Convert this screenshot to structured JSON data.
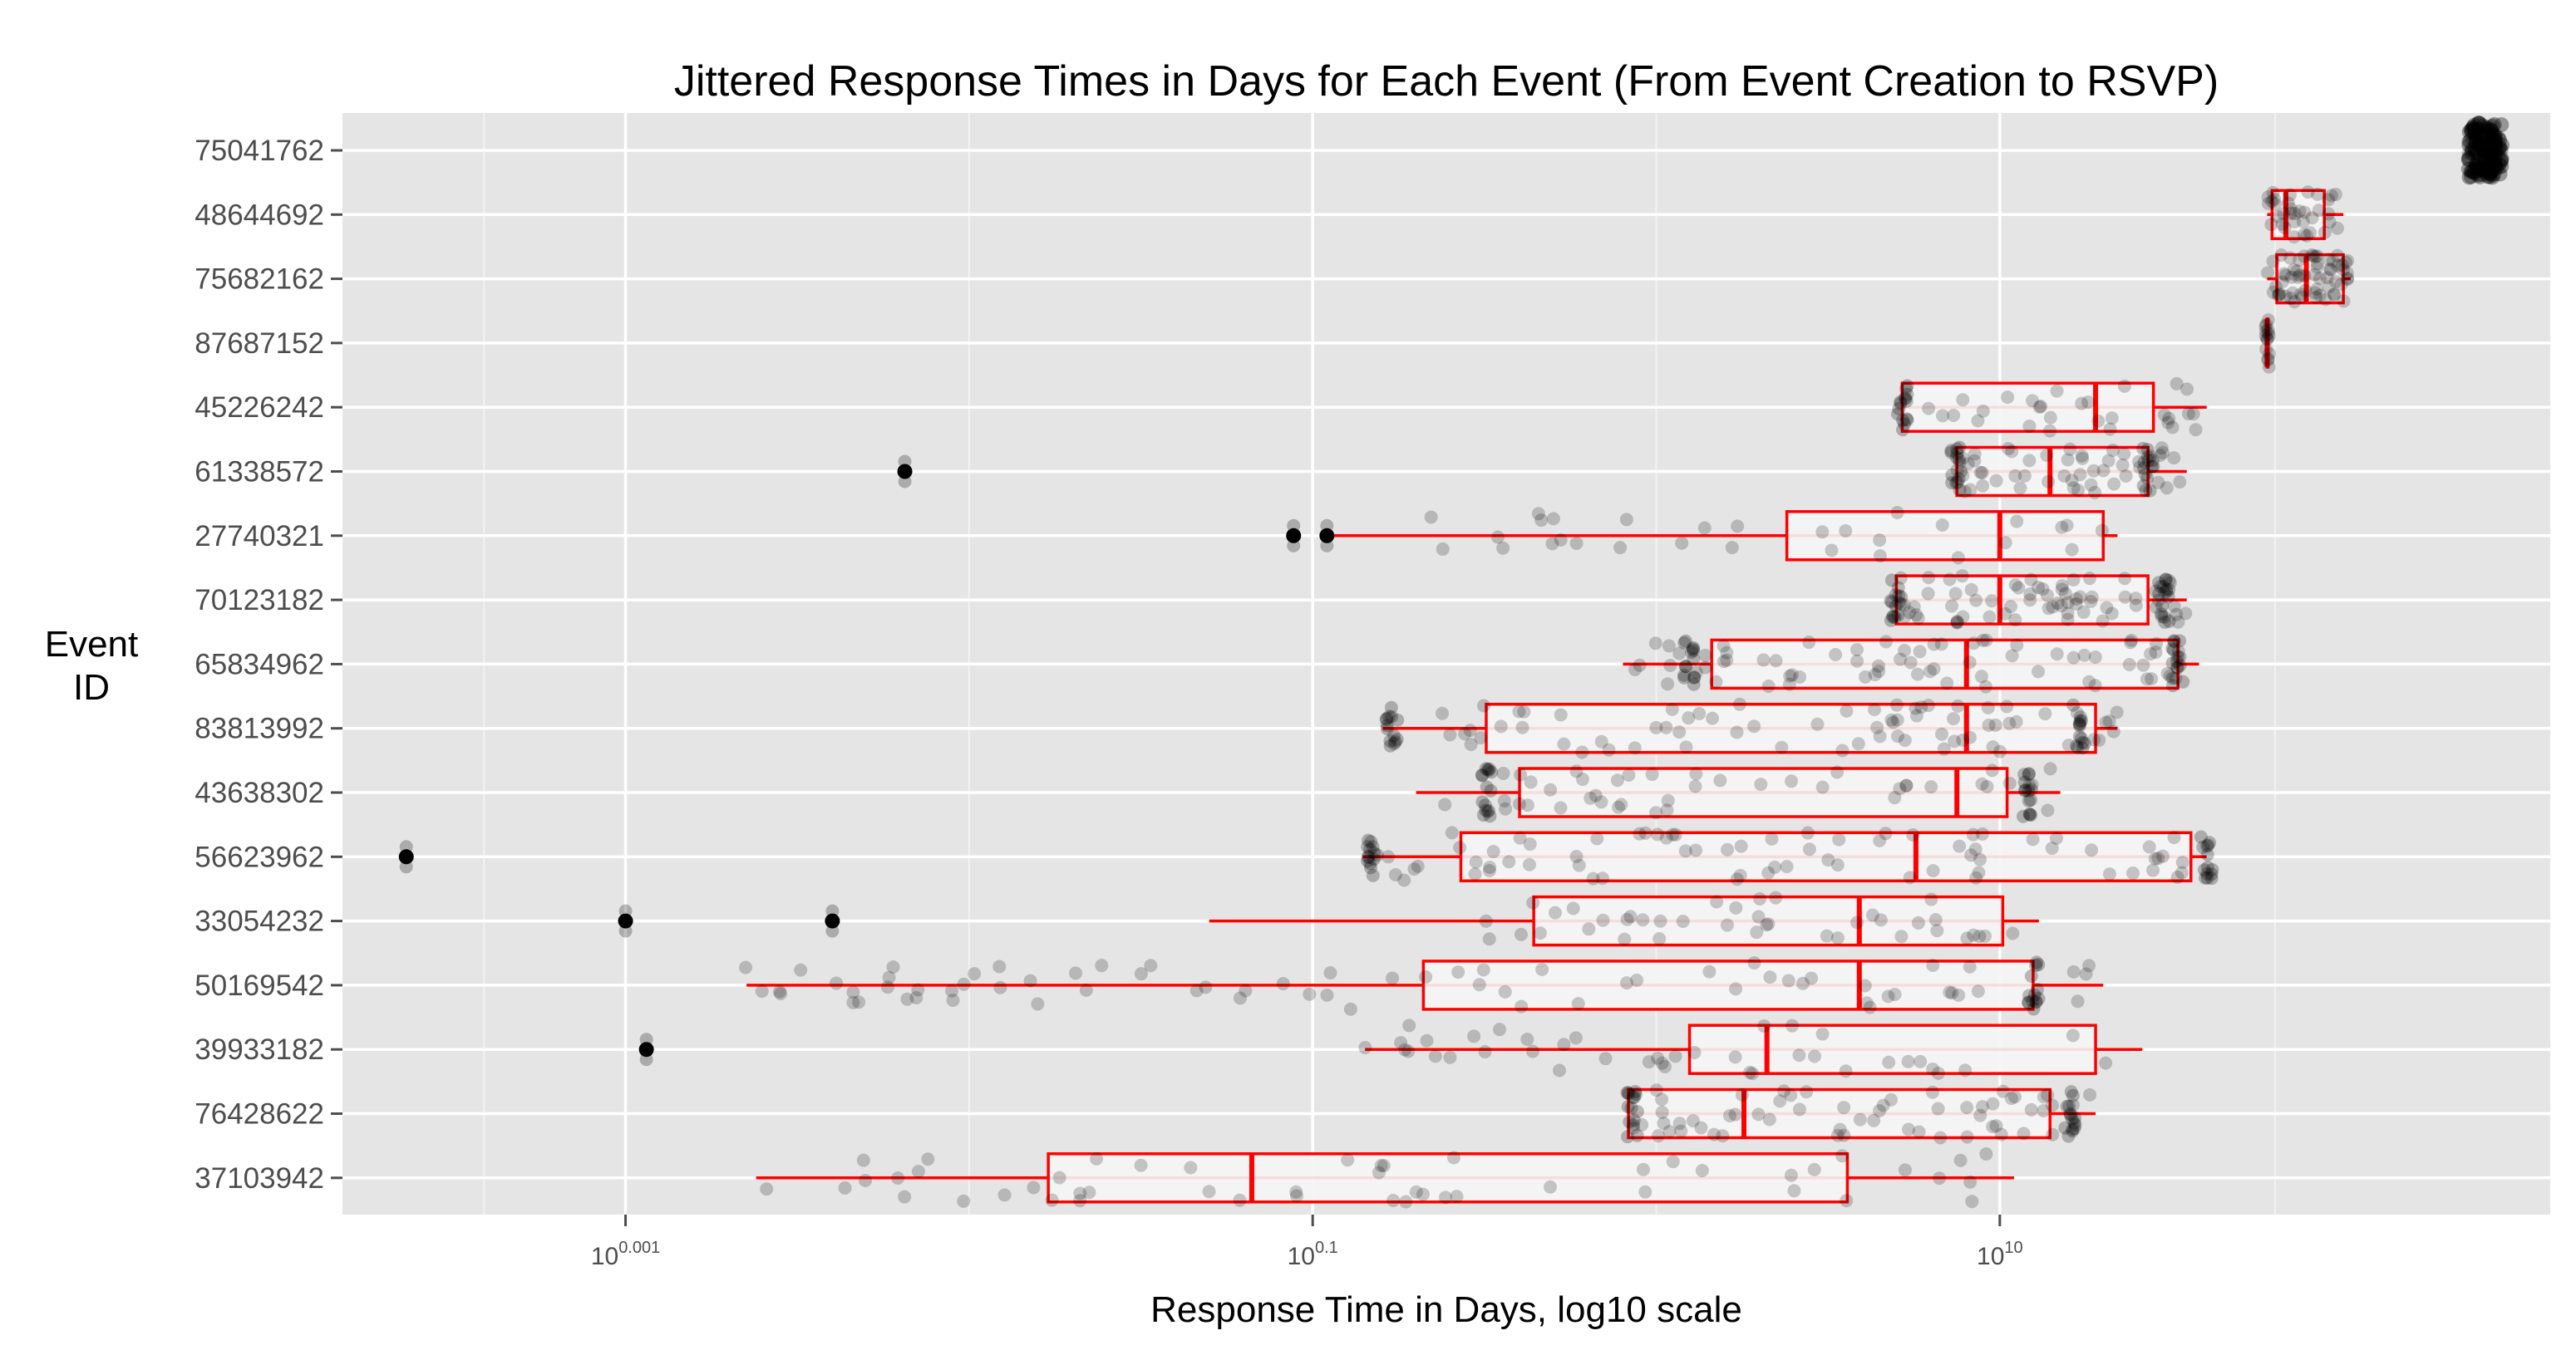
{
  "chart_data": {
    "type": "box",
    "title": "Jittered Response Times in Days for Each Event (From Event Creation to RSVP)",
    "xlabel": "Response Time in Days, log10 scale",
    "ylabel_lines": [
      "Event",
      "ID"
    ],
    "x_scale": "log10",
    "xlim": [
      0.00015,
      400
    ],
    "x_ticks": [
      {
        "value": 0.001,
        "base": "10",
        "exp": "0.001"
      },
      {
        "value": 0.1,
        "base": "10",
        "exp": "0.1"
      },
      {
        "value": 10,
        "base": "10",
        "exp": "10"
      }
    ],
    "grid": true,
    "colors": {
      "panel": "#e5e5e5",
      "grid_major": "#ffffff",
      "grid_minor": "#f2f2f2",
      "box": "#ff0000",
      "box_fill": "#f5f5f5",
      "points": "#000000"
    },
    "categories": [
      "75041762",
      "48644692",
      "75682162",
      "87687152",
      "45226242",
      "61338572",
      "27740321",
      "70123182",
      "65834962",
      "83813992",
      "43638302",
      "56623962",
      "33054232",
      "50169542",
      "39933182",
      "76428622",
      "37103942"
    ],
    "boxes": [
      {
        "id": "75041762",
        "wlo": 250,
        "q1": 250,
        "med": 250,
        "q3": 250,
        "whi": 250,
        "outliers": [],
        "points": {
          "lo": 230,
          "hi": 290,
          "n": 60,
          "clusters": []
        }
      },
      {
        "id": "48644692",
        "wlo": 60,
        "q1": 62,
        "med": 68,
        "q3": 88,
        "whi": 100,
        "outliers": [],
        "points": {
          "lo": 60,
          "hi": 100,
          "n": 35,
          "clusters": []
        }
      },
      {
        "id": "75682162",
        "wlo": 60,
        "q1": 64,
        "med": 78,
        "q3": 100,
        "whi": 105,
        "outliers": [],
        "points": {
          "lo": 60,
          "hi": 105,
          "n": 60,
          "clusters": []
        }
      },
      {
        "id": "87687152",
        "wlo": 60,
        "q1": 60,
        "med": 60,
        "q3": 60,
        "whi": 60,
        "outliers": [],
        "points": {
          "lo": 59,
          "hi": 61,
          "n": 15,
          "clusters": []
        }
      },
      {
        "id": "45226242",
        "wlo": 5.2,
        "q1": 5.2,
        "med": 19,
        "q3": 28,
        "whi": 40,
        "outliers": [],
        "points": {
          "lo": 5.2,
          "hi": 38,
          "n": 30,
          "clusters": [
            5.2
          ]
        }
      },
      {
        "id": "61338572",
        "wlo": 7.5,
        "q1": 7.5,
        "med": 14,
        "q3": 27,
        "whi": 35,
        "outliers": [
          0.0065
        ],
        "points": {
          "lo": 7.5,
          "hi": 35,
          "n": 50,
          "clusters": [
            7.5,
            27
          ]
        }
      },
      {
        "id": "27740321",
        "wlo": 0.11,
        "q1": 2.4,
        "med": 10,
        "q3": 20,
        "whi": 22,
        "outliers": [
          0.088,
          0.11
        ],
        "points": {
          "lo": 0.2,
          "hi": 22,
          "n": 30,
          "clusters": []
        }
      },
      {
        "id": "70123182",
        "wlo": 5.0,
        "q1": 5.0,
        "med": 10,
        "q3": 27,
        "whi": 35,
        "outliers": [],
        "points": {
          "lo": 5.0,
          "hi": 35,
          "n": 70,
          "clusters": [
            5.0,
            30
          ]
        }
      },
      {
        "id": "65834962",
        "wlo": 0.8,
        "q1": 1.45,
        "med": 8,
        "q3": 33,
        "whi": 38,
        "outliers": [],
        "points": {
          "lo": 0.8,
          "hi": 38,
          "n": 70,
          "clusters": [
            1.25,
            33
          ]
        }
      },
      {
        "id": "83813992",
        "wlo": 0.16,
        "q1": 0.32,
        "med": 8,
        "q3": 19,
        "whi": 22,
        "outliers": [],
        "points": {
          "lo": 0.16,
          "hi": 22,
          "n": 70,
          "clusters": [
            0.17,
            17
          ]
        }
      },
      {
        "id": "43638302",
        "wlo": 0.2,
        "q1": 0.4,
        "med": 7.5,
        "q3": 10.5,
        "whi": 15,
        "outliers": [],
        "points": {
          "lo": 0.2,
          "hi": 15,
          "n": 45,
          "clusters": [
            0.32,
            12
          ]
        }
      },
      {
        "id": "56623962",
        "wlo": 0.14,
        "q1": 0.27,
        "med": 5.7,
        "q3": 36,
        "whi": 40,
        "outliers": [
          0.00023
        ],
        "points": {
          "lo": 0.14,
          "hi": 40,
          "n": 70,
          "clusters": [
            0.15,
            40
          ]
        }
      },
      {
        "id": "33054232",
        "wlo": 0.05,
        "q1": 0.44,
        "med": 3.9,
        "q3": 10.2,
        "whi": 13,
        "outliers": [
          0.001,
          0.004
        ],
        "points": {
          "lo": 0.3,
          "hi": 12,
          "n": 40,
          "clusters": []
        }
      },
      {
        "id": "50169542",
        "wlo": 0.00225,
        "q1": 0.21,
        "med": 3.9,
        "q3": 12.5,
        "whi": 20,
        "outliers": [],
        "points": {
          "lo": 0.0022,
          "hi": 20,
          "n": 70,
          "clusters": [
            12.5
          ]
        }
      },
      {
        "id": "39933182",
        "wlo": 0.142,
        "q1": 1.25,
        "med": 2.1,
        "q3": 19,
        "whi": 26,
        "outliers": [
          0.00115
        ],
        "points": {
          "lo": 0.142,
          "hi": 22,
          "n": 40,
          "clusters": []
        }
      },
      {
        "id": "76428622",
        "wlo": 0.83,
        "q1": 0.83,
        "med": 1.8,
        "q3": 14,
        "whi": 19,
        "outliers": [],
        "points": {
          "lo": 0.82,
          "hi": 19,
          "n": 60,
          "clusters": [
            0.85,
            16
          ]
        }
      },
      {
        "id": "37103942",
        "wlo": 0.0024,
        "q1": 0.017,
        "med": 0.0665,
        "q3": 3.6,
        "whi": 11,
        "outliers": [],
        "points": {
          "lo": 0.0024,
          "hi": 11,
          "n": 50,
          "clusters": []
        }
      }
    ]
  }
}
